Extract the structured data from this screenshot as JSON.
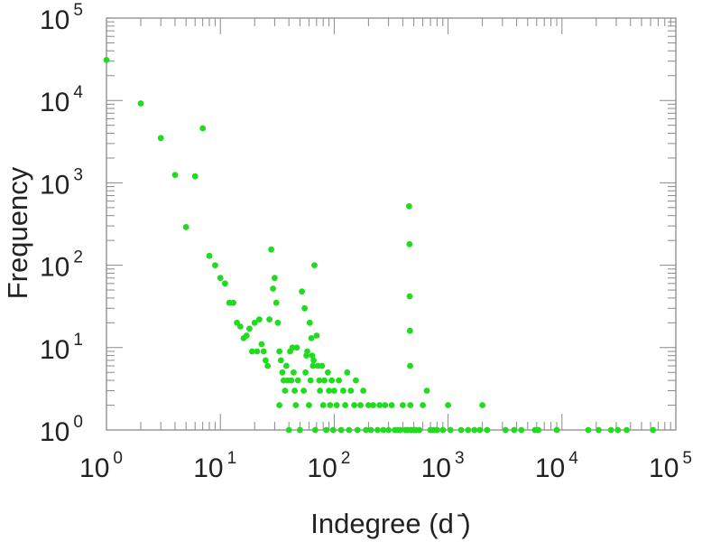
{
  "chart_data": {
    "type": "scatter",
    "xlabel": "Indegree (d  ̄)",
    "ylabel": "Frequency",
    "x_scale": "log",
    "y_scale": "log",
    "xlim": [
      1,
      100000
    ],
    "ylim": [
      1,
      100000
    ],
    "grid": false,
    "marker_color": "#1fdc1f",
    "x_ticks": [
      {
        "base": "10",
        "exp": "0"
      },
      {
        "base": "10",
        "exp": "1"
      },
      {
        "base": "10",
        "exp": "2"
      },
      {
        "base": "10",
        "exp": "3"
      },
      {
        "base": "10",
        "exp": "4"
      },
      {
        "base": "10",
        "exp": "5"
      }
    ],
    "y_ticks": [
      {
        "base": "10",
        "exp": "0"
      },
      {
        "base": "10",
        "exp": "1"
      },
      {
        "base": "10",
        "exp": "2"
      },
      {
        "base": "10",
        "exp": "3"
      },
      {
        "base": "10",
        "exp": "4"
      },
      {
        "base": "10",
        "exp": "5"
      }
    ],
    "points": [
      [
        1,
        31000
      ],
      [
        2,
        9200
      ],
      [
        3,
        3500
      ],
      [
        4,
        1250
      ],
      [
        5,
        290
      ],
      [
        6,
        1200
      ],
      [
        7,
        4600
      ],
      [
        8,
        130
      ],
      [
        9,
        100
      ],
      [
        10,
        70
      ],
      [
        11,
        60
      ],
      [
        12,
        35
      ],
      [
        13,
        35
      ],
      [
        14,
        20
      ],
      [
        15,
        18
      ],
      [
        16,
        13
      ],
      [
        17,
        14
      ],
      [
        18,
        17
      ],
      [
        19,
        9
      ],
      [
        20,
        20
      ],
      [
        21,
        9
      ],
      [
        22,
        22
      ],
      [
        23,
        11
      ],
      [
        24,
        9
      ],
      [
        25,
        7
      ],
      [
        26,
        6
      ],
      [
        27,
        22
      ],
      [
        28,
        155
      ],
      [
        29,
        52
      ],
      [
        30,
        70
      ],
      [
        31,
        35
      ],
      [
        32,
        20
      ],
      [
        33,
        9
      ],
      [
        34,
        7
      ],
      [
        35,
        5
      ],
      [
        36,
        4
      ],
      [
        37,
        3
      ],
      [
        33,
        2
      ],
      [
        38,
        6
      ],
      [
        39,
        4
      ],
      [
        40,
        1
      ],
      [
        41,
        9
      ],
      [
        42,
        4
      ],
      [
        43,
        10
      ],
      [
        44,
        5
      ],
      [
        45,
        3
      ],
      [
        46,
        2
      ],
      [
        47,
        10
      ],
      [
        48,
        4
      ],
      [
        50,
        1
      ],
      [
        52,
        48
      ],
      [
        54,
        3
      ],
      [
        55,
        30
      ],
      [
        56,
        5
      ],
      [
        57,
        8
      ],
      [
        58,
        9
      ],
      [
        60,
        2
      ],
      [
        61,
        20
      ],
      [
        62,
        4
      ],
      [
        63,
        13
      ],
      [
        64,
        8
      ],
      [
        65,
        6
      ],
      [
        66,
        7
      ],
      [
        67,
        100
      ],
      [
        68,
        1
      ],
      [
        70,
        14
      ],
      [
        72,
        6
      ],
      [
        74,
        4
      ],
      [
        75,
        3
      ],
      [
        78,
        6
      ],
      [
        80,
        2
      ],
      [
        82,
        4
      ],
      [
        85,
        1
      ],
      [
        88,
        5
      ],
      [
        90,
        3
      ],
      [
        92,
        2
      ],
      [
        95,
        4
      ],
      [
        98,
        1
      ],
      [
        100,
        3
      ],
      [
        105,
        2
      ],
      [
        110,
        4
      ],
      [
        115,
        1
      ],
      [
        120,
        3
      ],
      [
        125,
        2
      ],
      [
        130,
        5
      ],
      [
        135,
        1
      ],
      [
        140,
        3
      ],
      [
        150,
        2
      ],
      [
        155,
        4
      ],
      [
        160,
        1
      ],
      [
        170,
        2
      ],
      [
        180,
        3
      ],
      [
        190,
        1
      ],
      [
        200,
        2
      ],
      [
        210,
        1
      ],
      [
        220,
        2
      ],
      [
        240,
        1
      ],
      [
        250,
        2
      ],
      [
        270,
        1
      ],
      [
        280,
        2
      ],
      [
        300,
        1
      ],
      [
        320,
        2
      ],
      [
        340,
        1
      ],
      [
        360,
        1
      ],
      [
        380,
        1
      ],
      [
        400,
        2
      ],
      [
        420,
        1
      ],
      [
        440,
        1
      ],
      [
        455,
        520
      ],
      [
        458,
        180
      ],
      [
        460,
        42
      ],
      [
        462,
        16
      ],
      [
        464,
        6
      ],
      [
        466,
        2
      ],
      [
        470,
        1
      ],
      [
        500,
        1
      ],
      [
        520,
        1
      ],
      [
        560,
        1
      ],
      [
        600,
        2
      ],
      [
        650,
        3
      ],
      [
        700,
        1
      ],
      [
        750,
        1
      ],
      [
        800,
        1
      ],
      [
        900,
        1
      ],
      [
        1000,
        2
      ],
      [
        1050,
        1
      ],
      [
        1300,
        1
      ],
      [
        1500,
        1
      ],
      [
        1700,
        1
      ],
      [
        1900,
        1
      ],
      [
        2000,
        2
      ],
      [
        2200,
        1
      ],
      [
        3200,
        1
      ],
      [
        3800,
        1
      ],
      [
        4400,
        1
      ],
      [
        5800,
        1
      ],
      [
        6200,
        1
      ],
      [
        9000,
        1
      ],
      [
        17000,
        1
      ],
      [
        21000,
        1
      ],
      [
        27000,
        1
      ],
      [
        31000,
        1
      ],
      [
        37000,
        1
      ],
      [
        63000,
        1
      ]
    ]
  }
}
